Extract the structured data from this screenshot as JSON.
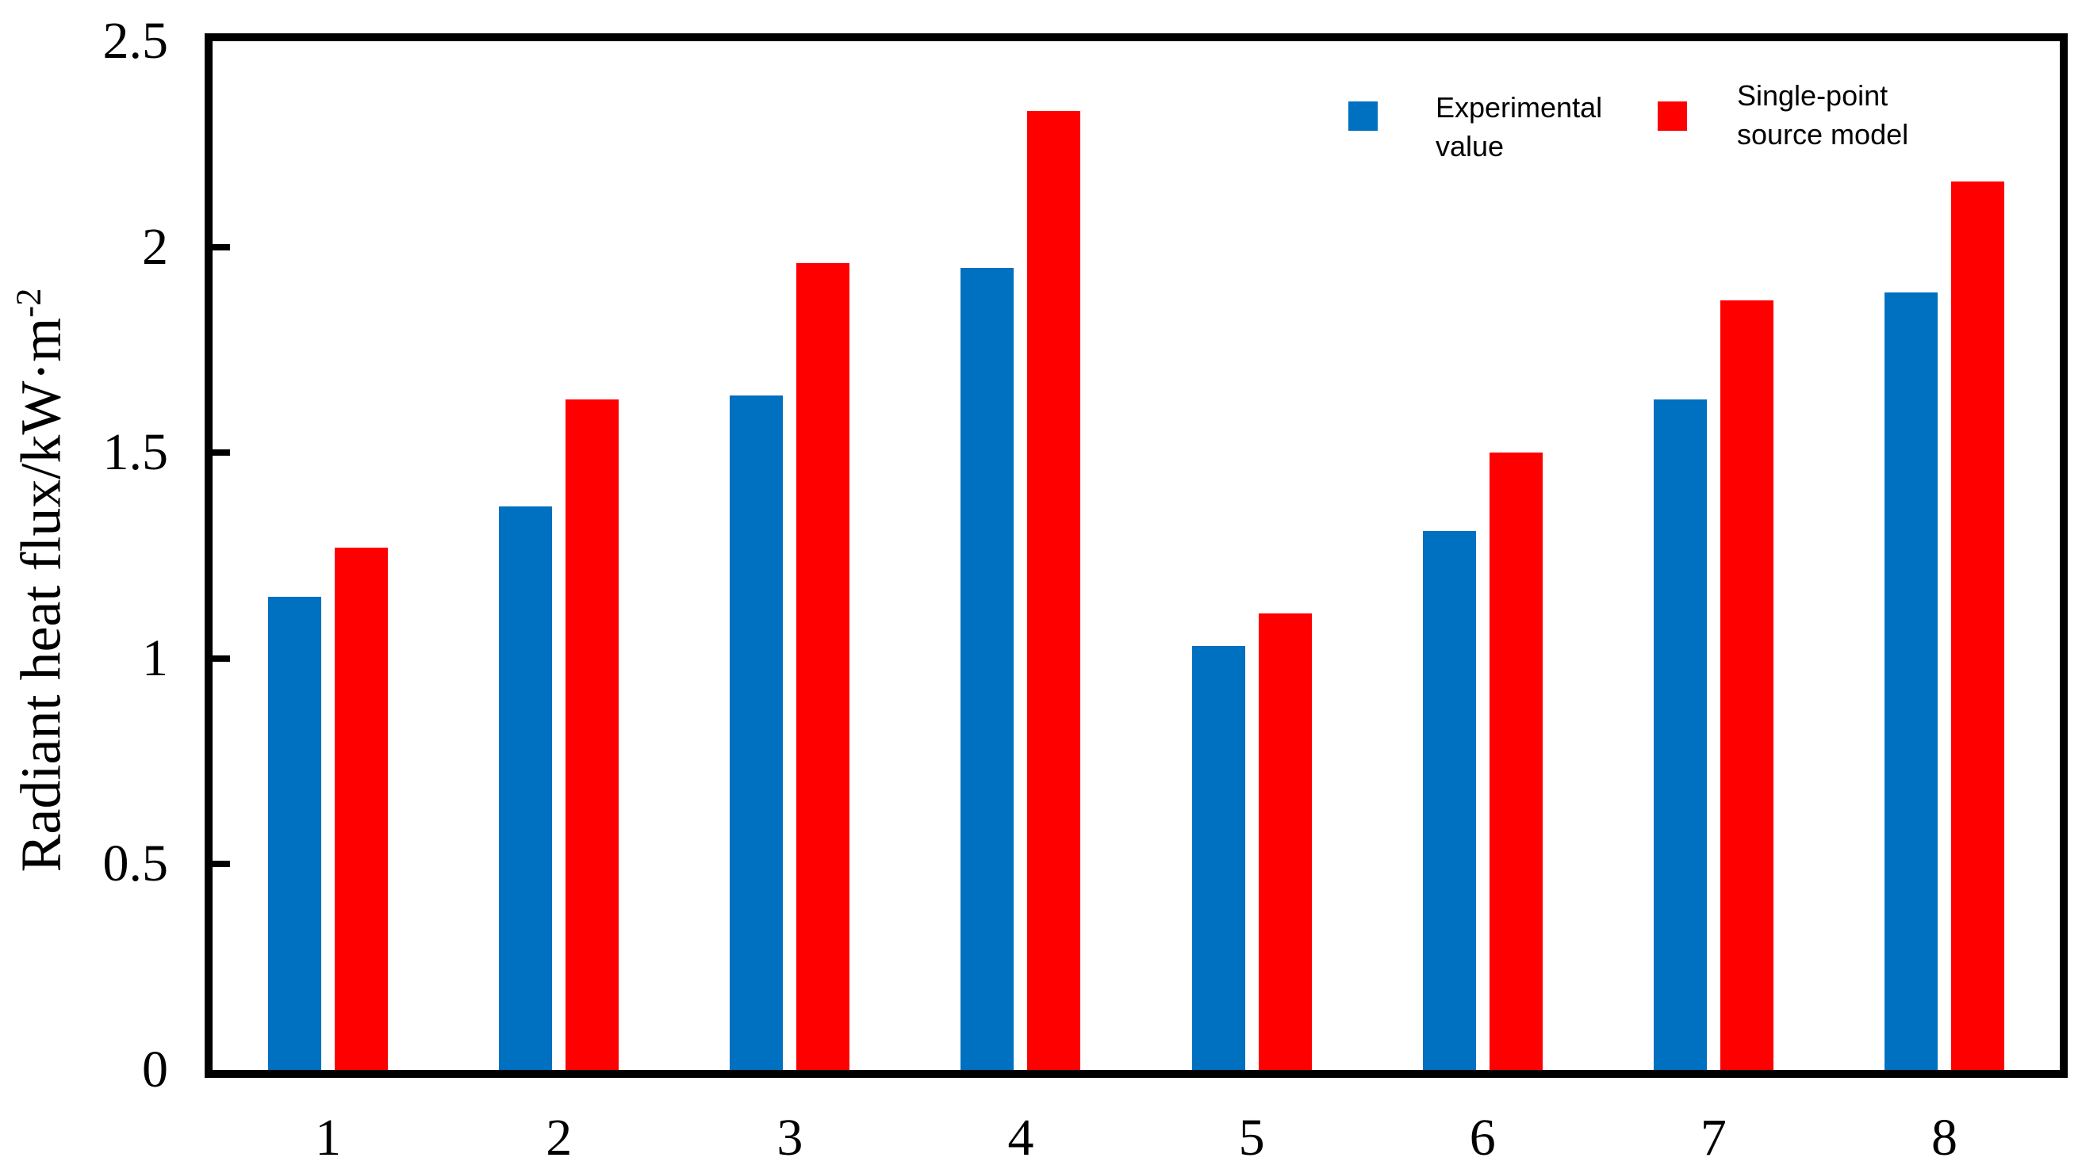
{
  "chart_data": {
    "type": "bar",
    "title": "",
    "categories": [
      "1",
      "2",
      "3",
      "4",
      "5",
      "6",
      "7",
      "8"
    ],
    "series": [
      {
        "name": "Experimental value",
        "color": "#0070C0",
        "values": [
          1.15,
          1.37,
          1.64,
          1.95,
          1.03,
          1.31,
          1.63,
          1.89
        ]
      },
      {
        "name": "Single-point source model",
        "color": "#FF0000",
        "values": [
          1.27,
          1.63,
          1.96,
          2.33,
          1.11,
          1.5,
          1.87,
          2.16
        ]
      }
    ],
    "xlabel": "",
    "ylabel": {
      "prefix": "Radiant heat flux/kW·m",
      "superscript": "-2"
    },
    "ylim": [
      0,
      2.5
    ],
    "ytick_step": 0.5,
    "yticks": [
      "0",
      "0.5",
      "1",
      "1.5",
      "2",
      "2.5"
    ],
    "grid": false,
    "legend_position": "inside-top-right",
    "frame_color": "#000000",
    "background_color": "#ffffff"
  }
}
